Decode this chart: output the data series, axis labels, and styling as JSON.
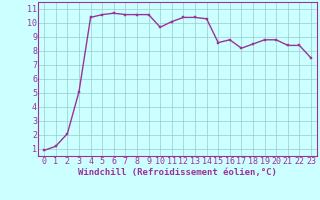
{
  "x": [
    0,
    1,
    2,
    3,
    4,
    5,
    6,
    7,
    8,
    9,
    10,
    11,
    12,
    13,
    14,
    15,
    16,
    17,
    18,
    19,
    20,
    21,
    22,
    23
  ],
  "y": [
    0.9,
    1.2,
    2.1,
    5.1,
    10.4,
    10.6,
    10.7,
    10.6,
    10.6,
    10.6,
    9.7,
    10.1,
    10.4,
    10.4,
    10.3,
    8.6,
    8.8,
    8.2,
    8.5,
    8.8,
    8.8,
    8.4,
    8.4,
    7.5
  ],
  "line_color": "#993399",
  "marker_color": "#993399",
  "bg_color": "#ccffff",
  "grid_color": "#99cccc",
  "xlabel": "Windchill (Refroidissement éolien,°C)",
  "xlim": [
    -0.5,
    23.5
  ],
  "ylim": [
    0.5,
    11.5
  ],
  "yticks": [
    1,
    2,
    3,
    4,
    5,
    6,
    7,
    8,
    9,
    10,
    11
  ],
  "xticks": [
    0,
    1,
    2,
    3,
    4,
    5,
    6,
    7,
    8,
    9,
    10,
    11,
    12,
    13,
    14,
    15,
    16,
    17,
    18,
    19,
    20,
    21,
    22,
    23
  ],
  "xlabel_fontsize": 6.5,
  "tick_fontsize": 6,
  "line_width": 1.0,
  "marker_size": 2.0
}
